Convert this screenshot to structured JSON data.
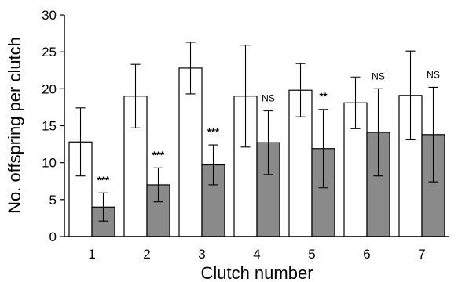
{
  "chart_data": {
    "type": "bar",
    "title": "",
    "xlabel": "Clutch number",
    "ylabel": "No. offspring per clutch",
    "ylim": [
      0,
      30
    ],
    "yticks": [
      0,
      5,
      10,
      15,
      20,
      25,
      30
    ],
    "categories": [
      "1",
      "2",
      "3",
      "4",
      "5",
      "6",
      "7"
    ],
    "grid": false,
    "legend": "none",
    "series": [
      {
        "color": "#ffffff",
        "values": [
          12.8,
          19.0,
          22.8,
          19.0,
          19.8,
          18.1,
          19.1
        ],
        "error": [
          4.6,
          4.3,
          3.5,
          6.9,
          3.6,
          3.5,
          6.0
        ]
      },
      {
        "color": "#8a8a8a",
        "values": [
          4.0,
          7.0,
          9.7,
          12.7,
          11.9,
          14.1,
          13.8
        ],
        "error": [
          1.9,
          2.3,
          2.7,
          4.3,
          5.3,
          5.9,
          6.4
        ]
      }
    ],
    "significance": [
      "***",
      "***",
      "***",
      "NS",
      "**",
      "NS",
      "NS"
    ]
  }
}
